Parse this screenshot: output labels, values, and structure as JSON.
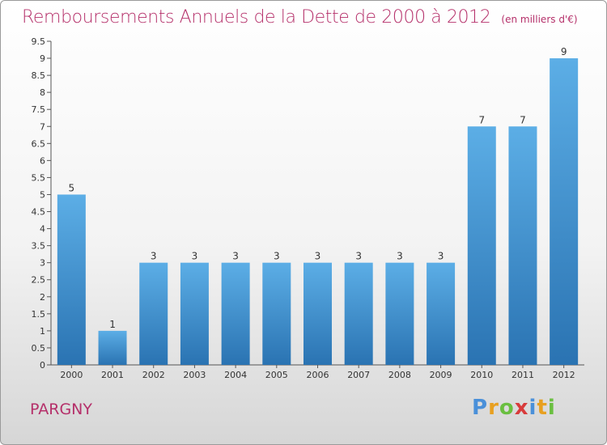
{
  "header": {
    "title": "Remboursements Annuels de la Dette de 2000 à 2012",
    "unit": "(en milliers d'€)"
  },
  "footer": {
    "commune": "PARGNY",
    "logo_text": "Proxiti"
  },
  "colors": {
    "title": "#b5306a",
    "bar_top": "#5caee6",
    "bar_bottom": "#2a73b2",
    "logo_letters": [
      "#4a90d9",
      "#e8a020",
      "#6abf40",
      "#d83b3b",
      "#4a90d9",
      "#e8a020",
      "#6abf40"
    ]
  },
  "chart_data": {
    "type": "bar",
    "title": "Remboursements Annuels de la Dette de 2000 à 2012",
    "xlabel": "",
    "ylabel": "",
    "categories": [
      "2000",
      "2001",
      "2002",
      "2003",
      "2004",
      "2005",
      "2006",
      "2007",
      "2008",
      "2009",
      "2010",
      "2011",
      "2012"
    ],
    "values": [
      5,
      1,
      3,
      3,
      3,
      3,
      3,
      3,
      3,
      3,
      7,
      7,
      9
    ],
    "value_labels": [
      "5",
      "1",
      "3",
      "3",
      "3",
      "3",
      "3",
      "3",
      "3",
      "3",
      "7",
      "7",
      "9"
    ],
    "ylim": [
      0,
      9.5
    ],
    "yticks": [
      "0",
      "0.5",
      "1",
      "1.5",
      "2",
      "2.5",
      "3",
      "3.5",
      "4",
      "4.5",
      "5",
      "5.5",
      "6",
      "6.5",
      "7",
      "7.5",
      "8",
      "8.5",
      "9",
      "9.5"
    ],
    "grid": false,
    "legend": "none"
  }
}
